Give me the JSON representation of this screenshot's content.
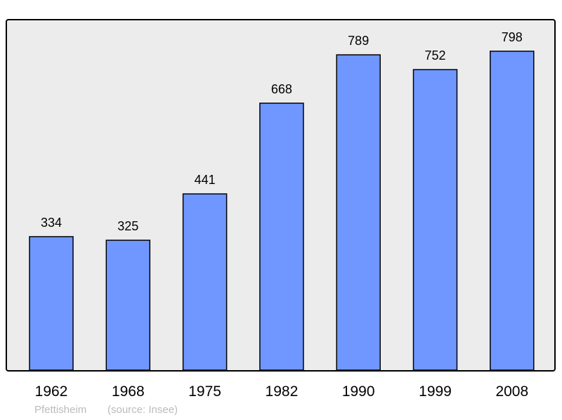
{
  "chart_data": {
    "type": "bar",
    "categories": [
      "1962",
      "1968",
      "1975",
      "1982",
      "1990",
      "1999",
      "2008"
    ],
    "values": [
      334,
      325,
      441,
      668,
      789,
      752,
      798
    ],
    "title": "",
    "xlabel": "",
    "ylabel": "",
    "grid": false,
    "bar_color": "#7097ff",
    "background_color": "#ececec"
  },
  "footer": {
    "place": "Pfettisheim",
    "source": "(source: Insee)"
  }
}
